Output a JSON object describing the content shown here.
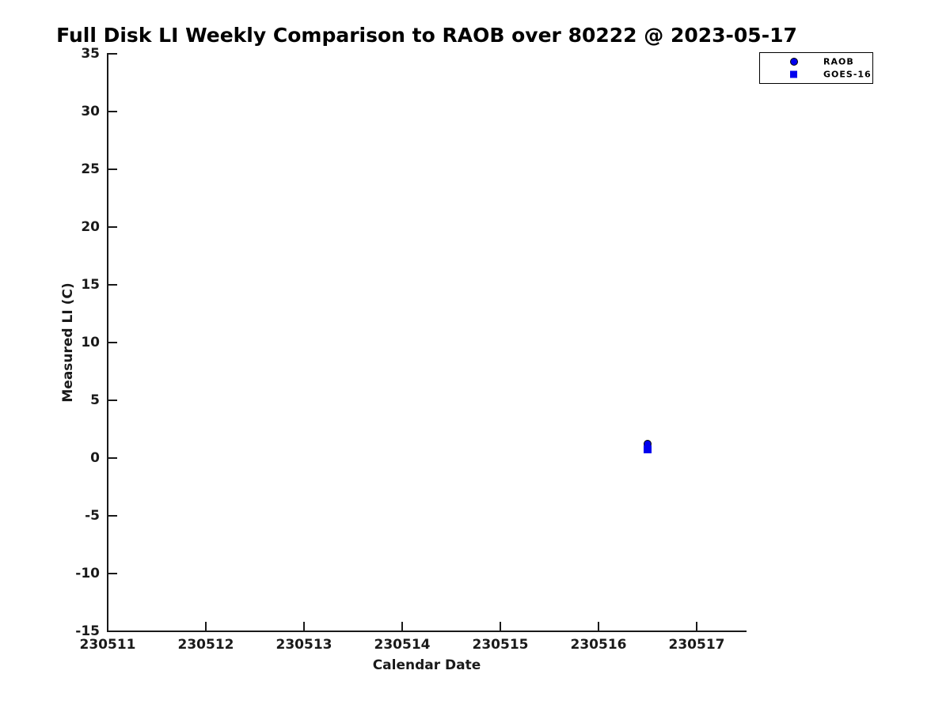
{
  "page": {
    "background": "#ffffff"
  },
  "colors": {
    "axis": "#1a1a1a",
    "text": "#000000",
    "series_blue": "#0000EE",
    "marker_edge": "#000000"
  },
  "chart_data": {
    "type": "scatter",
    "title": "Full Disk LI Weekly Comparison to RAOB over 80222 @ 2023-05-17",
    "xlabel": "Calendar Date",
    "ylabel": "Measured LI (C)",
    "xlim": [
      230511,
      230517.5
    ],
    "ylim": [
      -15,
      35
    ],
    "xticks": [
      230511,
      230512,
      230513,
      230514,
      230515,
      230516,
      230517
    ],
    "yticks": [
      35,
      30,
      25,
      20,
      15,
      10,
      5,
      0,
      -5,
      -10,
      -15
    ],
    "grid": false,
    "tick_direction": "in",
    "legend_position": "top-right",
    "series": [
      {
        "name": "RAOB",
        "marker": "circle",
        "color": "#0000EE",
        "edge_color": "#000000",
        "points": [
          {
            "x": 230516.5,
            "y": 1.2
          }
        ]
      },
      {
        "name": "GOES-16",
        "marker": "square",
        "color": "#0000EE",
        "edge_color": "#0000EE",
        "points": [
          {
            "x": 230516.5,
            "y": 0.75
          }
        ]
      }
    ]
  }
}
